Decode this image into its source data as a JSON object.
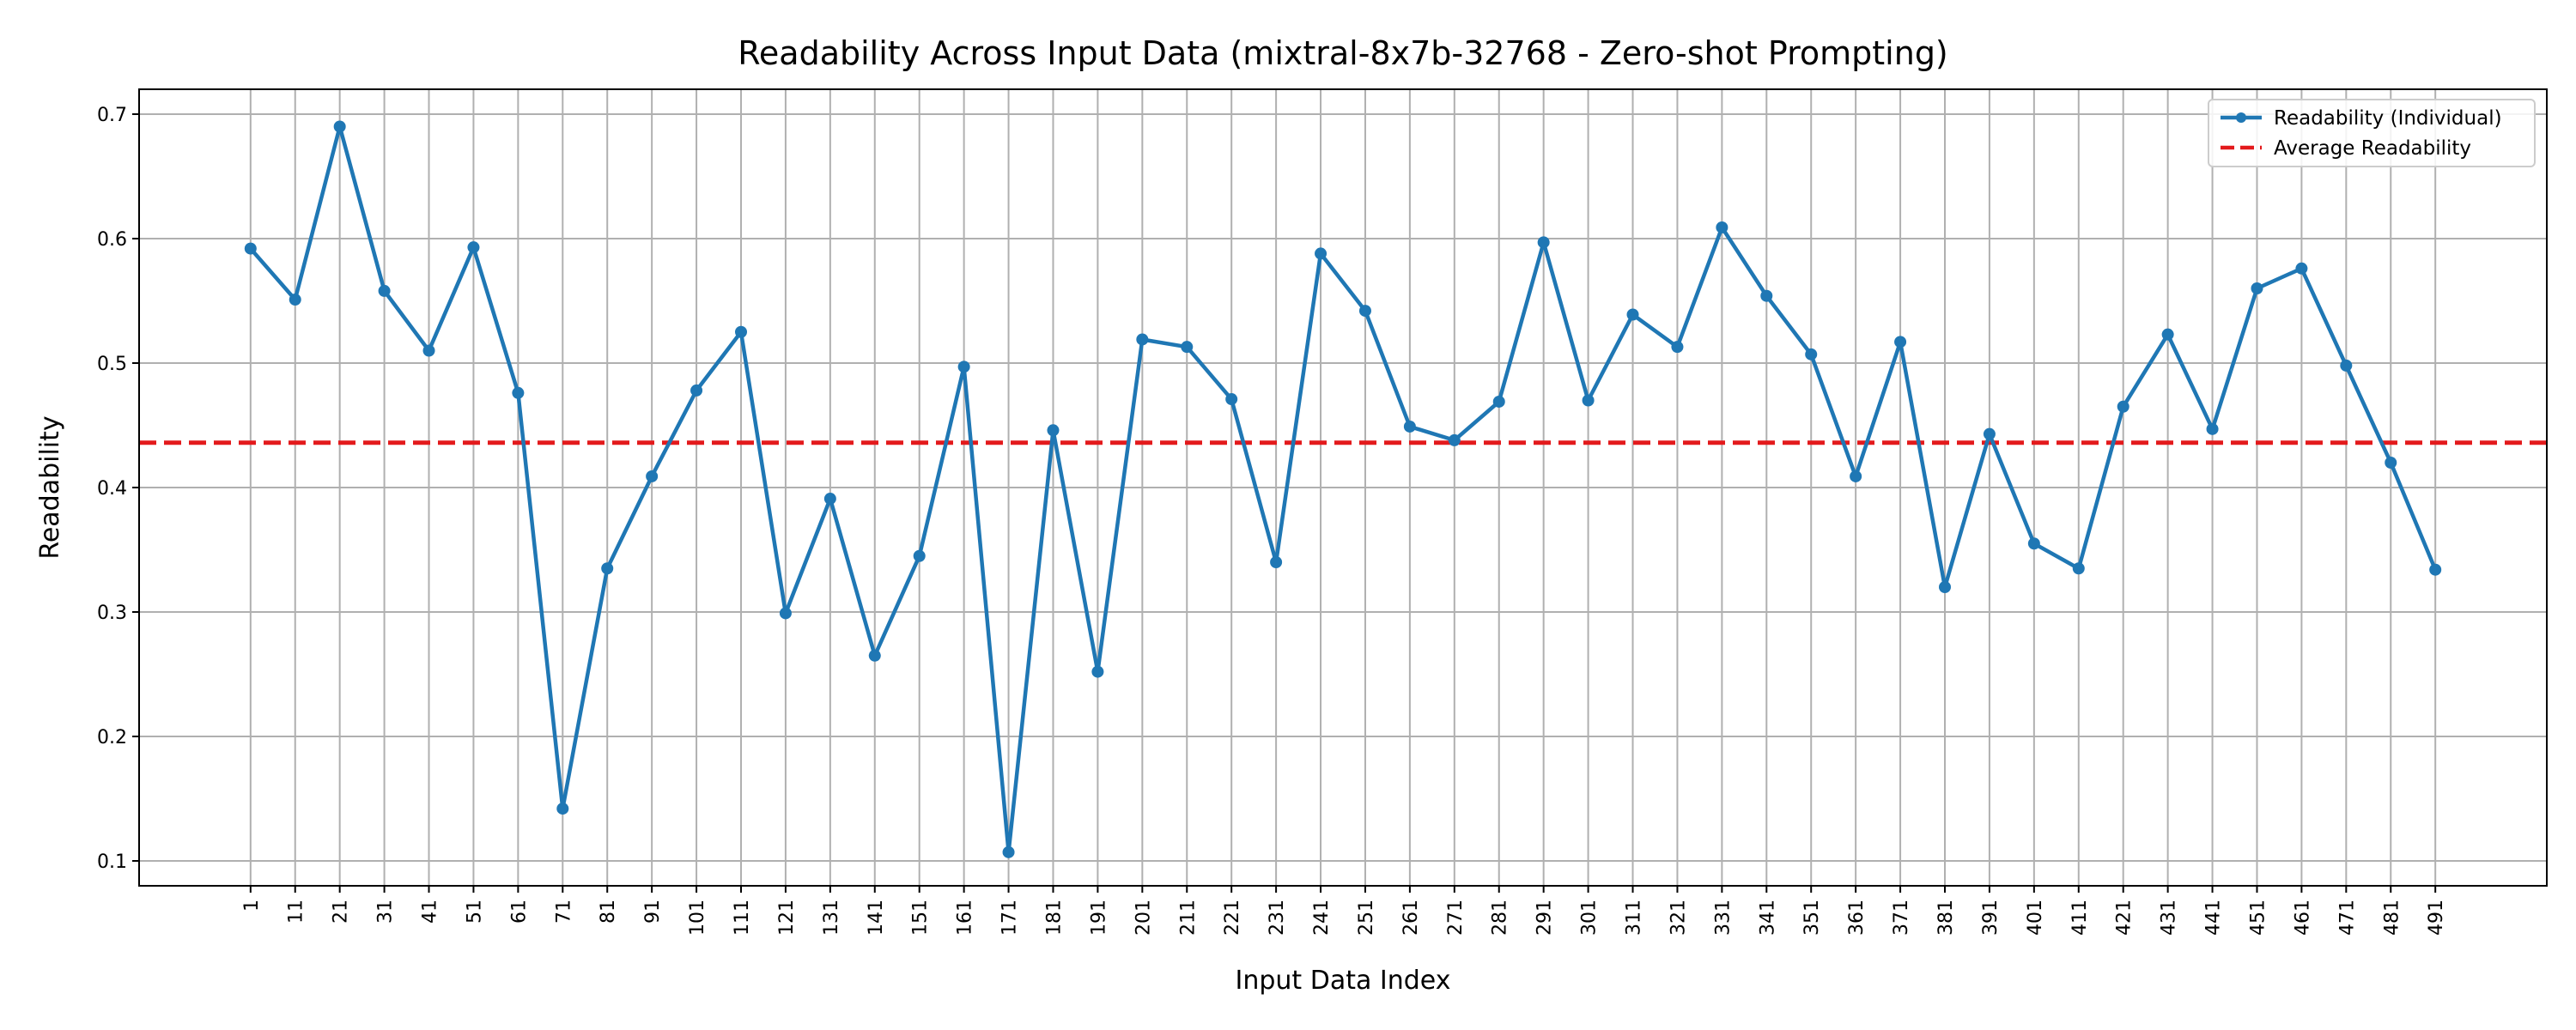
{
  "chart_data": {
    "type": "line",
    "title": "Readability Across Input Data (mixtral-8x7b-32768 - Zero-shot Prompting)",
    "xlabel": "Input Data Index",
    "ylabel": "Readability",
    "x": [
      1,
      11,
      21,
      31,
      41,
      51,
      61,
      71,
      81,
      91,
      101,
      111,
      121,
      131,
      141,
      151,
      161,
      171,
      181,
      191,
      201,
      211,
      221,
      231,
      241,
      251,
      261,
      271,
      281,
      291,
      301,
      311,
      321,
      331,
      341,
      351,
      361,
      371,
      381,
      391,
      401,
      411,
      421,
      431,
      441,
      451,
      461,
      471,
      481,
      491
    ],
    "x_tick_labels": [
      "1",
      "11",
      "21",
      "31",
      "41",
      "51",
      "61",
      "71",
      "81",
      "91",
      "101",
      "111",
      "121",
      "131",
      "141",
      "151",
      "161",
      "171",
      "181",
      "191",
      "201",
      "211",
      "221",
      "231",
      "241",
      "251",
      "261",
      "271",
      "281",
      "291",
      "301",
      "311",
      "321",
      "331",
      "341",
      "351",
      "361",
      "371",
      "381",
      "391",
      "401",
      "411",
      "421",
      "431",
      "441",
      "451",
      "461",
      "471",
      "481",
      "491"
    ],
    "series": [
      {
        "name": "Readability (Individual)",
        "color": "#1f77b4",
        "values": [
          0.592,
          0.551,
          0.69,
          0.558,
          0.51,
          0.593,
          0.476,
          0.142,
          0.335,
          0.409,
          0.478,
          0.525,
          0.299,
          0.391,
          0.265,
          0.345,
          0.497,
          0.107,
          0.446,
          0.252,
          0.519,
          0.513,
          0.471,
          0.34,
          0.588,
          0.542,
          0.449,
          0.438,
          0.469,
          0.597,
          0.47,
          0.539,
          0.513,
          0.609,
          0.554,
          0.507,
          0.409,
          0.517,
          0.32,
          0.443,
          0.355,
          0.335,
          0.465,
          0.523,
          0.447,
          0.56,
          0.576,
          0.498,
          0.42,
          0.334
        ]
      }
    ],
    "average": {
      "name": "Average Readability",
      "value": 0.436,
      "color": "#e31a1c"
    },
    "y_ticks": [
      0.1,
      0.2,
      0.3,
      0.4,
      0.5,
      0.6,
      0.7
    ],
    "y_tick_labels": [
      "0.1",
      "0.2",
      "0.3",
      "0.4",
      "0.5",
      "0.6",
      "0.7"
    ],
    "ylim": [
      0.08,
      0.72
    ],
    "xlim": [
      -24,
      516
    ],
    "grid": true,
    "legend_position": "top-right"
  }
}
